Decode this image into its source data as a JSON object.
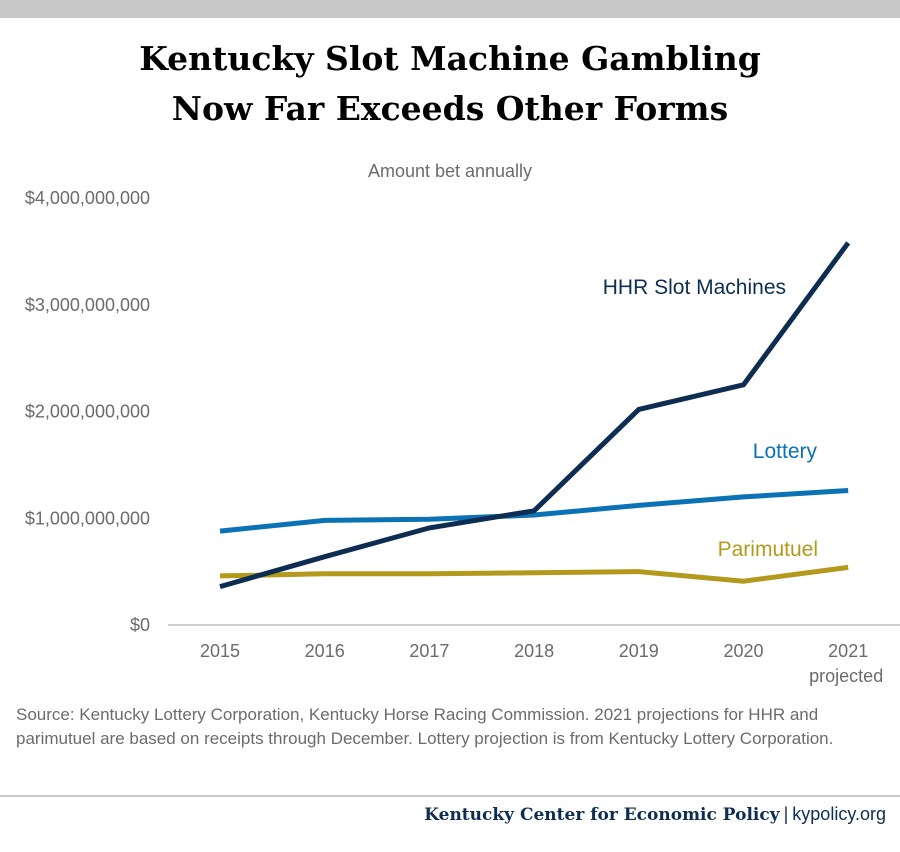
{
  "header": {
    "title_line1": "Kentucky Slot Machine Gambling",
    "title_line2": "Now Far Exceeds Other Forms"
  },
  "chart_data": {
    "type": "line",
    "title": "Kentucky Slot Machine Gambling Now Far Exceeds Other Forms",
    "subtitle": "Amount bet annually",
    "categories": [
      "2015",
      "2016",
      "2017",
      "2018",
      "2019",
      "2020",
      "2021"
    ],
    "category_sublabels": [
      "",
      "",
      "",
      "",
      "",
      "",
      "projected"
    ],
    "ylim": [
      0,
      4000000000
    ],
    "y_ticks": [
      0,
      1000000000,
      2000000000,
      3000000000,
      4000000000
    ],
    "y_tick_labels": [
      "$0",
      "$1,000,000,000",
      "$2,000,000,000",
      "$3,000,000,000",
      "$4,000,000,000"
    ],
    "grid": false,
    "series": [
      {
        "name": "HHR Slot Machines",
        "color": "#0d2d52",
        "values": [
          360000000,
          640000000,
          910000000,
          1070000000,
          2020000000,
          2250000000,
          3580000000
        ]
      },
      {
        "name": "Lottery",
        "color": "#0a72b5",
        "values": [
          880000000,
          980000000,
          990000000,
          1030000000,
          1120000000,
          1200000000,
          1260000000
        ]
      },
      {
        "name": "Parimutuel",
        "color": "#b39a1c",
        "values": [
          460000000,
          480000000,
          480000000,
          490000000,
          500000000,
          410000000,
          540000000
        ]
      }
    ]
  },
  "source_note": "Source:  Kentucky Lottery Corporation, Kentucky Horse Racing Commission. 2021 projections for HHR and parimutuel are based on receipts through December. Lottery projection is from Kentucky Lottery Corporation.",
  "footer": {
    "org": "Kentucky Center for Economic Policy",
    "separator": "|",
    "url": "kypolicy.org"
  }
}
